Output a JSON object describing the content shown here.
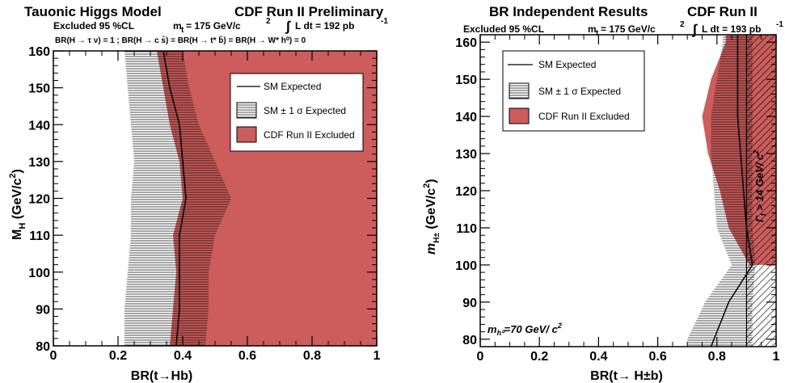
{
  "colors": {
    "excluded": "#cd5c5c",
    "line": "#000000",
    "hatch": "#000000"
  },
  "left": {
    "title": "Tauonic Higgs Model",
    "subtitle_right": "CDF Run II Preliminary",
    "excluded_label": "Excluded 95 %CL",
    "mass_label": "m",
    "mass_sub": "t",
    "mass_value": "= 175 GeV/c",
    "mass_sup": "2",
    "lumi_int": "∫",
    "lumi_label": "L dt = 192 pb",
    "lumi_sup": "-1",
    "assumption": "BR(H → τ ν) = 1 ;   BR(H → c s̄) = BR(H → t* b̄) = BR(H → W* h⁰) = 0",
    "xlabel": "BR(t→Hb)",
    "ylabel_main": "M",
    "ylabel_sub": "H",
    "ylabel_unit": " (GeV/c",
    "ylabel_sup": "2",
    "ylabel_close": ")",
    "legend": [
      "SM Expected",
      "SM ± 1 σ Expected",
      "CDF Run II Excluded"
    ]
  },
  "right": {
    "title": "BR Independent Results",
    "subtitle_right": "CDF Run II",
    "excluded_label": "Excluded 95 %CL",
    "mass_label": "m",
    "mass_sub": "t",
    "mass_value": "= 175 GeV/c",
    "mass_sup": "2",
    "lumi_int": "∫",
    "lumi_label": "L dt = 193 pb",
    "lumi_sup": "-1",
    "xlabel": "BR(t→ H±b)",
    "ylabel_main": "m",
    "ylabel_sub": "H±",
    "ylabel_unit": " (GeV/c",
    "ylabel_sup": "2",
    "ylabel_close": ")",
    "annotation_h0": "m",
    "annotation_h0_sub": "h⁰",
    "annotation_h0_value": "=70 GeV/  c",
    "annotation_h0_sup": "2",
    "annotation_gamma": "Γ",
    "annotation_gamma_sub": "t",
    "annotation_gamma_value": " > 14 GeV/  c",
    "annotation_gamma_sup": "2",
    "legend": [
      "SM Expected",
      "SM ± 1 σ Expected",
      "CDF Run II Excluded"
    ]
  },
  "chart_data": [
    {
      "type": "area",
      "title": "Tauonic Higgs Model",
      "xlabel": "BR(t→Hb)",
      "ylabel": "M_H (GeV/c²)",
      "xlim": [
        0,
        1
      ],
      "ylim": [
        80,
        160
      ],
      "x_ticks": [
        "0",
        "0.2",
        "0.4",
        "0.6",
        "0.8",
        "1"
      ],
      "y_ticks": [
        "80",
        "90",
        "100",
        "110",
        "120",
        "130",
        "140",
        "150",
        "160"
      ],
      "legend_position": "top-right",
      "series": [
        {
          "name": "SM Expected",
          "y": [
            80,
            90,
            100,
            110,
            120,
            130,
            140,
            150,
            160
          ],
          "x": [
            0.38,
            0.39,
            0.39,
            0.39,
            0.41,
            0.4,
            0.39,
            0.36,
            0.34
          ]
        },
        {
          "name": "SM ± 1 σ Expected",
          "y": [
            80,
            90,
            100,
            110,
            120,
            130,
            140,
            150,
            160
          ],
          "x_low": [
            0.22,
            0.22,
            0.23,
            0.24,
            0.24,
            0.25,
            0.24,
            0.23,
            0.22
          ],
          "x_high": [
            0.47,
            0.48,
            0.48,
            0.5,
            0.55,
            0.5,
            0.45,
            0.42,
            0.4
          ]
        },
        {
          "name": "CDF Run II Excluded",
          "y": [
            80,
            90,
            100,
            110,
            120,
            130,
            140,
            150,
            160
          ],
          "x_low": [
            0.36,
            0.37,
            0.38,
            0.37,
            0.4,
            0.39,
            0.36,
            0.34,
            0.32
          ],
          "x_high": [
            1,
            1,
            1,
            1,
            1,
            1,
            1,
            1,
            1
          ]
        }
      ]
    },
    {
      "type": "area",
      "title": "BR Independent Results",
      "xlabel": "BR(t→ H±b)",
      "ylabel": "m_H± (GeV/c²)",
      "xlim": [
        0,
        1
      ],
      "ylim": [
        78,
        162
      ],
      "x_ticks": [
        "0",
        "0.2",
        "0.4",
        "0.6",
        "0.8",
        "1"
      ],
      "y_ticks": [
        "80",
        "90",
        "100",
        "110",
        "120",
        "130",
        "140",
        "150",
        "160"
      ],
      "legend_position": "top-left",
      "series": [
        {
          "name": "SM Expected",
          "y": [
            78,
            90,
            100,
            110,
            120,
            130,
            140,
            150,
            160
          ],
          "x": [
            0.78,
            0.84,
            0.92,
            0.9,
            0.89,
            0.88,
            0.87,
            0.87,
            0.87
          ]
        },
        {
          "name": "SM ± 1 σ Expected",
          "y": [
            80,
            90,
            100,
            110,
            120,
            130,
            140,
            150,
            160
          ],
          "x_low": [
            0.7,
            0.76,
            0.85,
            0.8,
            0.79,
            0.78,
            0.78,
            0.8,
            0.82
          ],
          "x_high": [
            0.92,
            0.92,
            0.93,
            0.92,
            0.92,
            0.92,
            0.92,
            0.92,
            0.92
          ]
        },
        {
          "name": "CDF Run II Excluded",
          "y": [
            100,
            110,
            120,
            130,
            140,
            150,
            160
          ],
          "x_low": [
            0.91,
            0.84,
            0.81,
            0.77,
            0.75,
            0.78,
            0.83
          ],
          "x_high": [
            1,
            1,
            1,
            1,
            1,
            1,
            1
          ]
        },
        {
          "name": "Γt > 14 GeV/c²",
          "x_low": 0.9,
          "x_high": 1.0
        }
      ]
    }
  ]
}
